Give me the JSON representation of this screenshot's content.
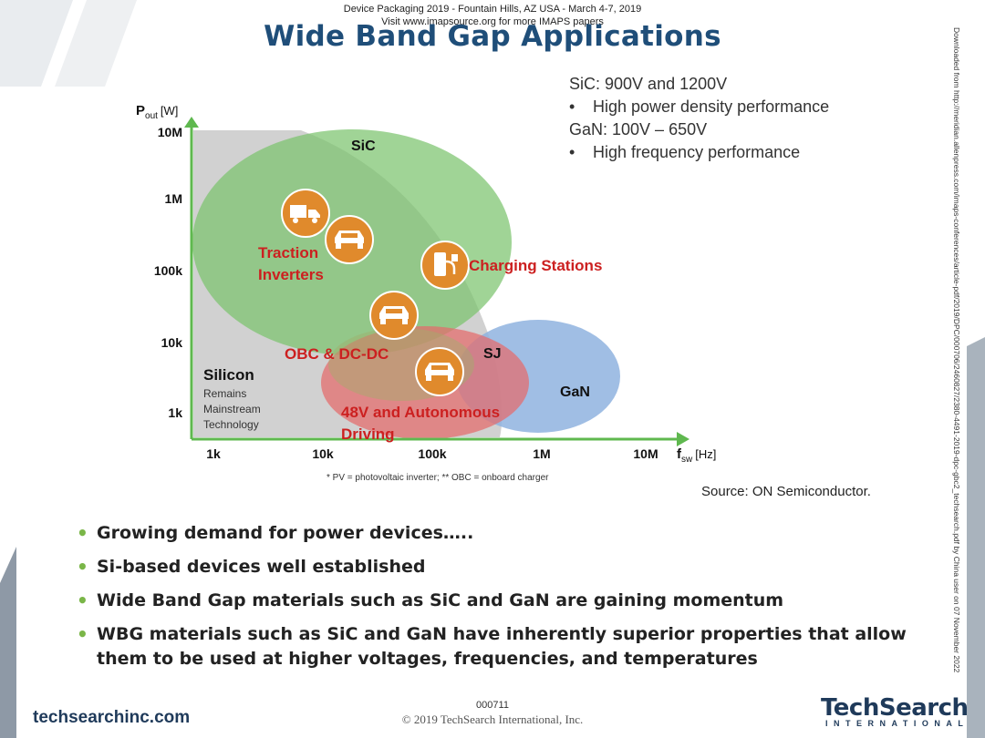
{
  "header": {
    "line1": "Device Packaging 2019 - Fountain Hills, AZ USA - March 4-7, 2019",
    "line2": "Visit www.imapsource.org for more IMAPS papers"
  },
  "title": "Wide Band Gap Applications",
  "legend": {
    "sic_label": "SiC",
    "sic_range": ": 900V and 1200V",
    "sic_point": "High power density performance",
    "gan_label": "GaN",
    "gan_range": ": 100V – 650V",
    "gan_point": "High frequency performance"
  },
  "chart_data": {
    "type": "scatter",
    "x_axis": {
      "label_main": "f",
      "label_sub": "sw",
      "label_unit": "[Hz]",
      "scale": "log",
      "ticks": [
        "1k",
        "10k",
        "100k",
        "1M",
        "10M"
      ]
    },
    "y_axis": {
      "label_main": "P",
      "label_sub": "out",
      "label_unit": "[W]",
      "scale": "log",
      "ticks": [
        "1k",
        "10k",
        "100k",
        "1M",
        "10M"
      ]
    },
    "regions": [
      {
        "name": "Silicon",
        "color": "#c8c8c8",
        "notes": [
          "Remains",
          "Mainstream",
          "Technology"
        ]
      },
      {
        "name": "SiC",
        "color": "#7cc46e"
      },
      {
        "name": "GaN",
        "color": "#8fb3df"
      },
      {
        "name": "SJ",
        "color": "#e46b6b"
      }
    ],
    "applications": [
      {
        "label_lines": [
          "Traction",
          "Inverters"
        ],
        "icons": [
          "truck-icon",
          "car-icon"
        ]
      },
      {
        "label_lines": [
          "Charging Stations"
        ],
        "icons": [
          "charger-icon"
        ]
      },
      {
        "label_lines": [
          "OBC & DC-DC"
        ],
        "icons": [
          "car-icon"
        ]
      },
      {
        "label_lines": [
          "48V and Autonomous",
          "Driving"
        ],
        "icons": [
          "car-icon"
        ]
      }
    ],
    "footnote": "* PV = photovoltaic inverter; ** OBC = onboard charger"
  },
  "source": "Source:  ON Semiconductor.",
  "bullets": [
    "Growing demand for power devices…..",
    "Si-based devices well established",
    "Wide Band Gap materials such as SiC and GaN are gaining momentum",
    "WBG materials such as SiC and GaN have inherently superior properties that allow them to be used at higher voltages, frequencies, and temperatures"
  ],
  "footer": {
    "site": "techsearchinc.com",
    "page_number": "000711",
    "copyright": "© 2019 TechSearch International, Inc.",
    "logo_text": "TechSearch",
    "logo_sub": "INTERNATIONAL"
  },
  "sidebar_text": "Downloaded from http://meridian.allenpress.com/imaps-conferences/article-pdf/2019/DPC/000706/2460827/2380-4491-2019-dpc-gbc2_techsearch.pdf by China user on 07 November 2022",
  "colors": {
    "title": "#1f4e79",
    "accent_orange": "#e08a2c",
    "label_red": "#cc2020",
    "axis_green": "#5fb84f"
  }
}
